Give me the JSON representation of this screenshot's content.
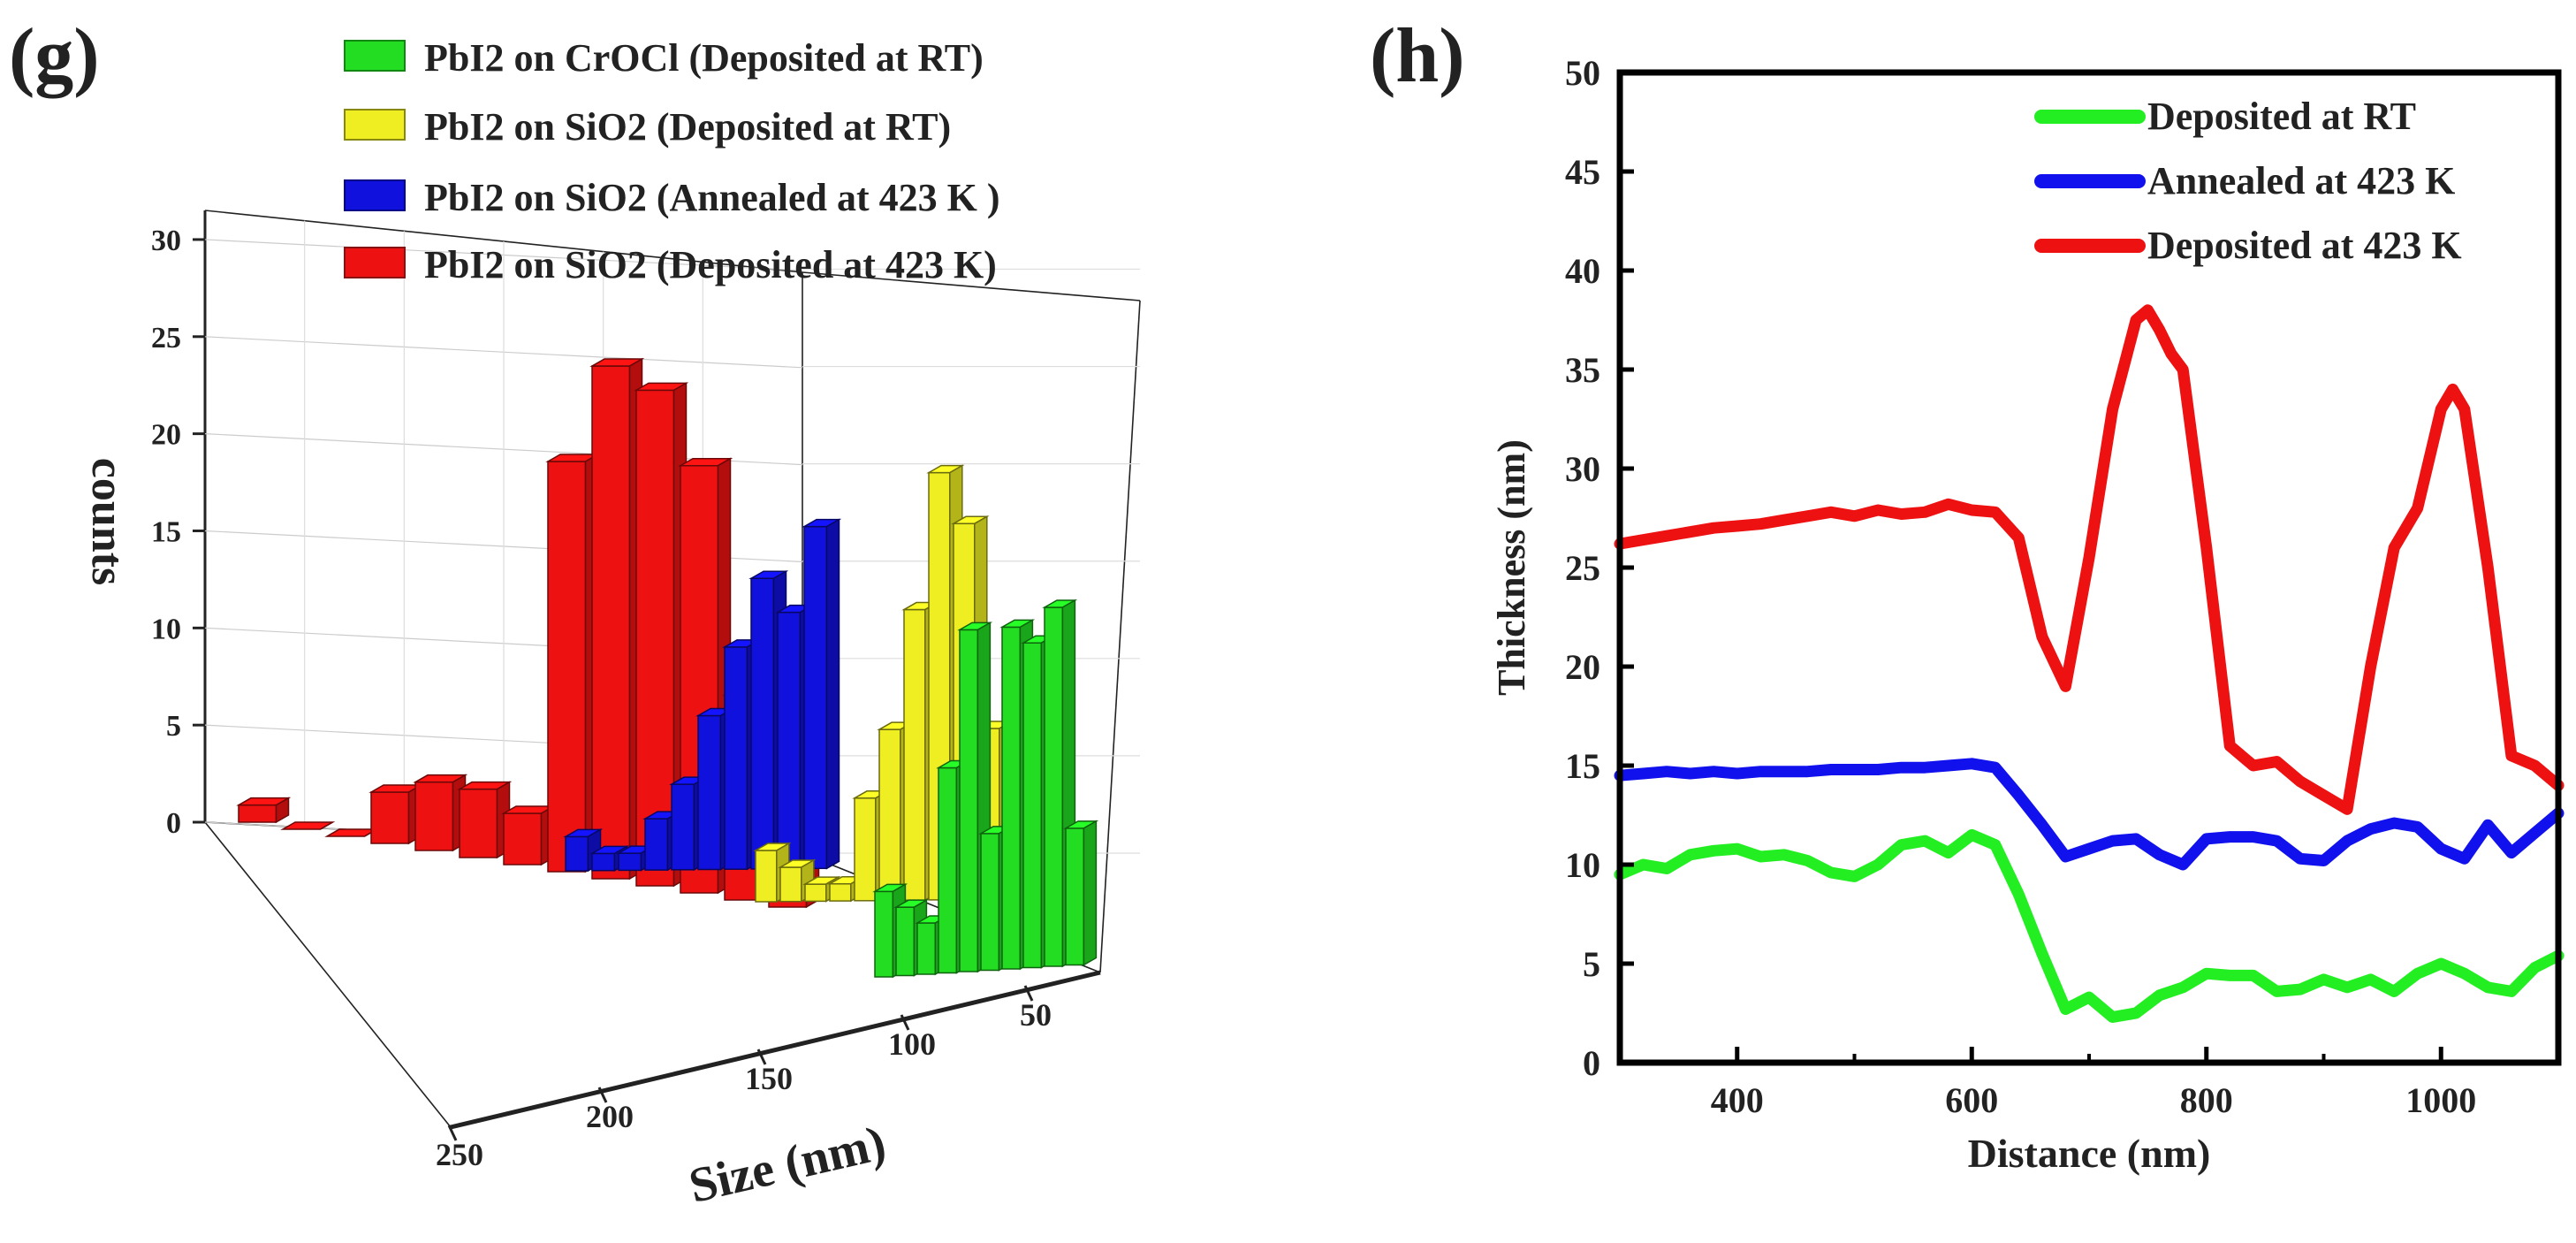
{
  "panel_g": {
    "label": "(g)",
    "legend": [
      "PbI2 on CrOCl (Deposited at RT)",
      "PbI2 on SiO2 (Deposited at RT)",
      "PbI2 on SiO2 (Annealed at 423 K )",
      "PbI2 on SiO2 (Deposited at 423 K)"
    ]
  },
  "panel_h": {
    "label": "(h)"
  },
  "chart_data": [
    {
      "type": "bar",
      "subtype": "3d-histogram",
      "title": "",
      "xlabel": "Size (nm)",
      "ylabel": "counts",
      "x_ticks": [
        "50",
        "100",
        "150",
        "200",
        "250"
      ],
      "y_ticks": [
        "0",
        "5",
        "10",
        "15",
        "20",
        "25",
        "30"
      ],
      "ylim": [
        0,
        32
      ],
      "series": [
        {
          "name": "PbI2 on CrOCl (Deposited at RT)",
          "color": "#22dd22",
          "values": [
            5,
            4,
            3,
            12,
            20,
            8,
            20,
            19,
            21,
            8
          ]
        },
        {
          "name": "PbI2 on SiO2 (Deposited at RT)",
          "color": "#eeee22",
          "values": [
            3,
            2,
            1,
            1,
            6,
            10,
            17,
            25,
            22,
            10
          ]
        },
        {
          "name": "PbI2 on SiO2 (Annealed at 423 K )",
          "color": "#1111dd",
          "values": [
            2,
            1,
            1,
            3,
            5,
            9,
            13,
            17,
            15,
            20
          ]
        },
        {
          "name": "PbI2 on SiO2 (Deposited at 423 K)",
          "color": "#ee1111",
          "values": [
            1,
            0,
            0,
            3,
            4,
            4,
            3,
            24,
            30,
            29,
            25,
            12,
            10
          ]
        }
      ]
    },
    {
      "type": "line",
      "title": "",
      "xlabel": "Distance (nm)",
      "ylabel": "Thickness (nm)",
      "xlim": [
        300,
        1100
      ],
      "ylim": [
        0,
        50
      ],
      "x_ticks": [
        400,
        600,
        800,
        1000
      ],
      "y_ticks": [
        0,
        5,
        10,
        15,
        20,
        25,
        30,
        35,
        40,
        45,
        50
      ],
      "legend_position": "top-right",
      "series": [
        {
          "name": "Deposited at RT",
          "color": "#22ee22",
          "x": [
            300,
            320,
            340,
            360,
            380,
            400,
            420,
            440,
            460,
            480,
            500,
            520,
            540,
            560,
            580,
            600,
            620,
            640,
            660,
            680,
            700,
            720,
            740,
            760,
            780,
            800,
            820,
            840,
            860,
            880,
            900,
            920,
            940,
            960,
            980,
            1000,
            1020,
            1040,
            1060,
            1080,
            1100
          ],
          "y": [
            9.5,
            10,
            9.8,
            10.5,
            10.7,
            10.8,
            10.4,
            10.5,
            10.2,
            9.6,
            9.4,
            10,
            11,
            11.2,
            10.6,
            11.5,
            11,
            8.5,
            5.5,
            2.7,
            3.3,
            2.3,
            2.5,
            3.4,
            3.8,
            4.5,
            4.4,
            4.4,
            3.6,
            3.7,
            4.2,
            3.8,
            4.2,
            3.6,
            4.5,
            5,
            4.5,
            3.8,
            3.6,
            4.8,
            5.4
          ]
        },
        {
          "name": "Annealed at 423 K",
          "color": "#1111ee",
          "x": [
            300,
            320,
            340,
            360,
            380,
            400,
            420,
            440,
            460,
            480,
            500,
            520,
            540,
            560,
            580,
            600,
            620,
            640,
            660,
            680,
            700,
            720,
            740,
            760,
            780,
            800,
            820,
            840,
            860,
            880,
            900,
            920,
            940,
            960,
            980,
            1000,
            1020,
            1040,
            1060,
            1080,
            1100
          ],
          "y": [
            14.5,
            14.6,
            14.7,
            14.6,
            14.7,
            14.6,
            14.7,
            14.7,
            14.7,
            14.8,
            14.8,
            14.8,
            14.9,
            14.9,
            15,
            15.1,
            14.9,
            13.5,
            12,
            10.4,
            10.8,
            11.2,
            11.3,
            10.5,
            10,
            11.3,
            11.4,
            11.4,
            11.2,
            10.3,
            10.2,
            11.2,
            11.8,
            12.1,
            11.9,
            10.8,
            10.3,
            12,
            10.6,
            11.6,
            12.6
          ]
        },
        {
          "name": "Deposited at 423 K",
          "color": "#ee1111",
          "x": [
            300,
            320,
            340,
            360,
            380,
            400,
            420,
            440,
            460,
            480,
            500,
            520,
            540,
            560,
            580,
            600,
            620,
            640,
            660,
            680,
            700,
            720,
            740,
            750,
            760,
            770,
            780,
            800,
            820,
            840,
            860,
            880,
            900,
            920,
            940,
            960,
            980,
            1000,
            1010,
            1020,
            1040,
            1060,
            1080,
            1100
          ],
          "y": [
            26.2,
            26.4,
            26.6,
            26.8,
            27,
            27.1,
            27.2,
            27.4,
            27.6,
            27.8,
            27.6,
            27.9,
            27.7,
            27.8,
            28.2,
            27.9,
            27.8,
            26.5,
            21.5,
            19,
            25.5,
            33,
            37.5,
            38,
            37,
            35.8,
            35,
            26,
            16,
            15,
            15.2,
            14.2,
            13.5,
            12.8,
            20,
            26,
            28,
            33,
            34,
            33,
            25,
            15.5,
            15,
            14
          ]
        }
      ]
    }
  ]
}
